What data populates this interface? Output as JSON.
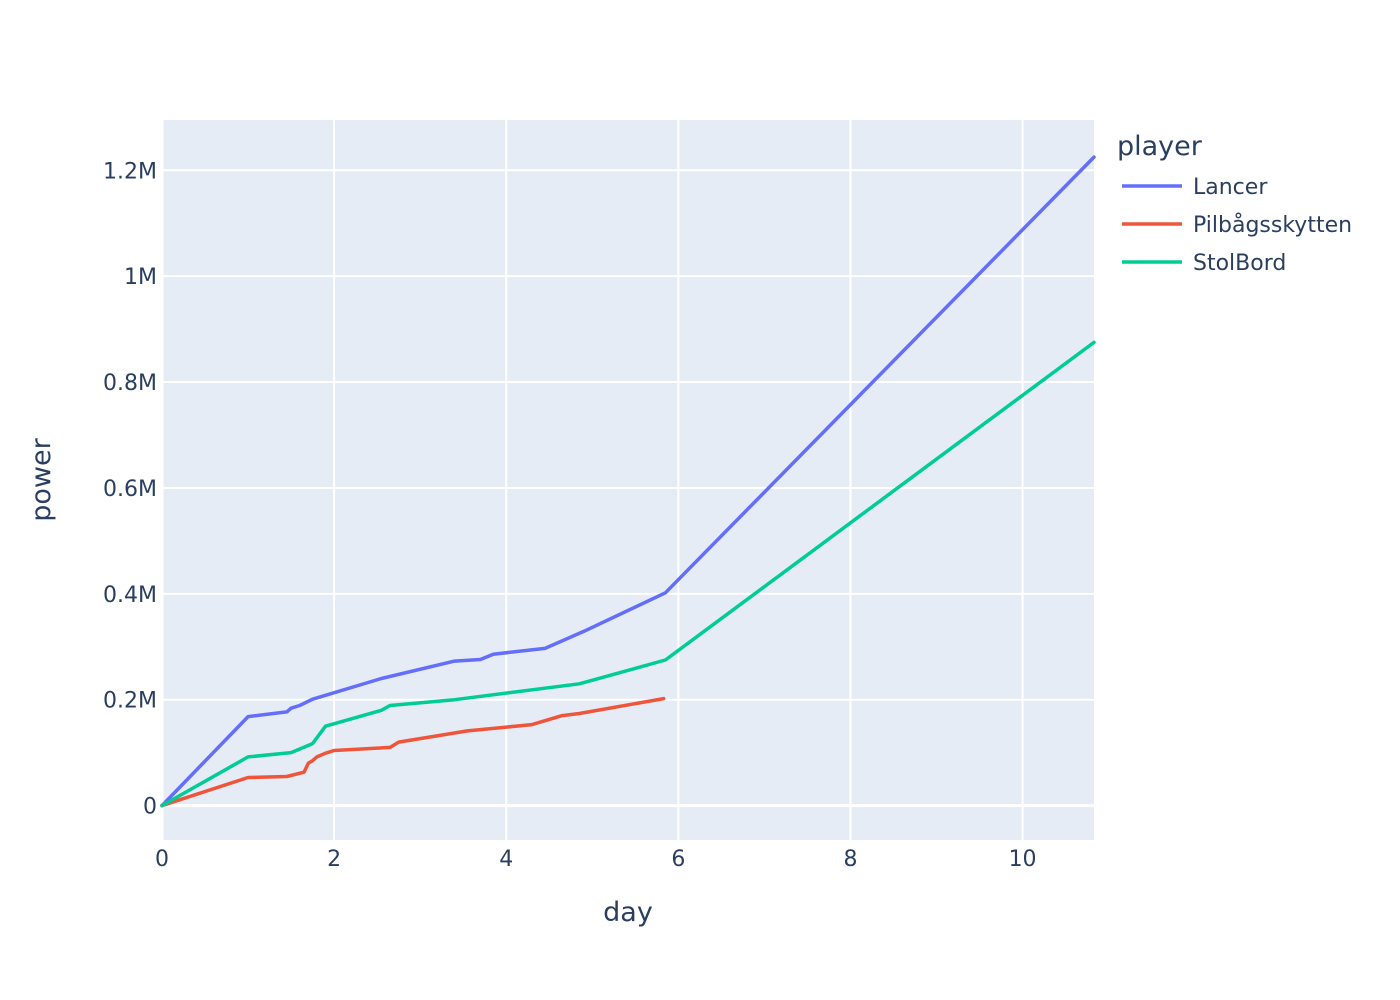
{
  "chart_data": {
    "type": "line",
    "title": "",
    "xlabel": "day",
    "ylabel": "power",
    "xlim": [
      0,
      10.83
    ],
    "ylim": [
      -65000,
      1295000
    ],
    "grid": true,
    "x_ticks": [
      0,
      2,
      4,
      6,
      8,
      10
    ],
    "x_tick_labels": [
      "0",
      "2",
      "4",
      "6",
      "8",
      "10"
    ],
    "y_ticks": [
      0,
      200000,
      400000,
      600000,
      800000,
      1000000,
      1200000
    ],
    "y_tick_labels": [
      "0",
      "0.2M",
      "0.4M",
      "0.6M",
      "0.8M",
      "1M",
      "1.2M"
    ],
    "legend_title": "player",
    "legend_position": "top-right",
    "series": [
      {
        "name": "Lancer",
        "color": "#636efa",
        "x": [
          0,
          1.0,
          1.45,
          1.5,
          1.6,
          1.75,
          2.55,
          3.4,
          3.7,
          3.85,
          4.45,
          4.9,
          5.85,
          10.83
        ],
        "y": [
          0,
          168000,
          177000,
          184000,
          189000,
          201000,
          240000,
          273000,
          276000,
          286000,
          297000,
          329000,
          402000,
          1225000
        ]
      },
      {
        "name": "Pilbågsskytten",
        "color": "#ef553b",
        "x": [
          0,
          1.0,
          1.45,
          1.65,
          1.7,
          1.75,
          1.8,
          1.9,
          2.0,
          2.65,
          2.75,
          3.55,
          4.3,
          4.65,
          4.85,
          5.83
        ],
        "y": [
          0,
          53000,
          55000,
          63000,
          80000,
          85000,
          92000,
          99000,
          104000,
          110000,
          120000,
          141000,
          153000,
          170000,
          174000,
          202000
        ]
      },
      {
        "name": "StolBord",
        "color": "#00cc96",
        "x": [
          0,
          1.0,
          1.5,
          1.75,
          1.9,
          2.55,
          2.65,
          3.4,
          4.85,
          5.85,
          10.83
        ],
        "y": [
          0,
          92000,
          100000,
          117000,
          150000,
          180000,
          189000,
          200000,
          230000,
          275000,
          875000
        ]
      }
    ]
  }
}
